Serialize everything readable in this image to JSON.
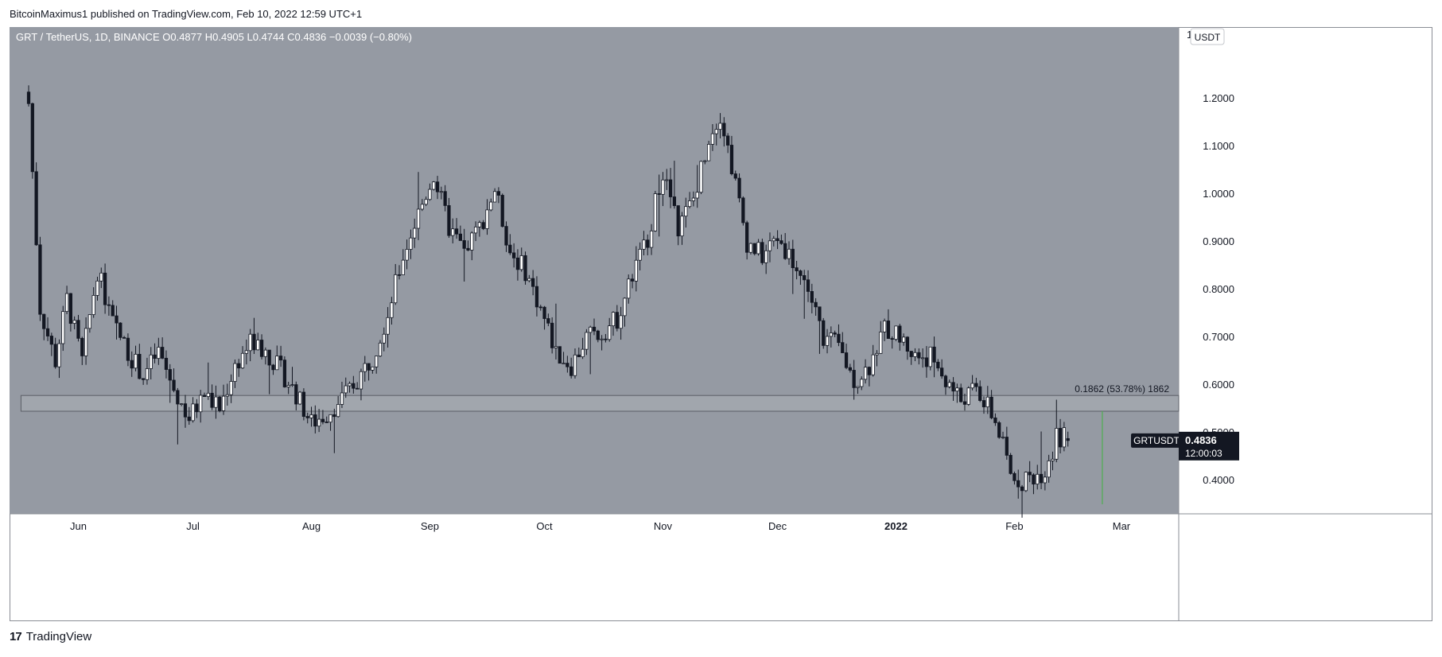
{
  "header": {
    "published_by": "BitcoinMaximus1 published on TradingView.com, Feb 10, 2022 12:59 UTC+1"
  },
  "footer": {
    "brand": "TradingView",
    "logo_glyph": "17"
  },
  "colors": {
    "background": "#959aa3",
    "up_body": "#ffffff",
    "down_body": "#131722",
    "wick": "#131722",
    "axis_text": "#131722",
    "zone_fill": "#a1a6ad",
    "zone_stroke": "#5b5f66",
    "measure_line": "#4caf50",
    "price_label_bg": "#131722"
  },
  "chart_data": {
    "type": "candlestick",
    "legend": {
      "symbol": "GRT / TetherUS, 1D, BINANCE",
      "o_label": "O",
      "o": "0.4877",
      "h_label": "H",
      "h": "0.4905",
      "l_label": "L",
      "l": "0.4744",
      "c_label": "C",
      "c": "0.4836",
      "change": "−0.0039 (−0.80%)"
    },
    "currency": "USDT",
    "ylim": [
      0.33,
      1.35
    ],
    "y_ticks": [
      {
        "value": 1.2,
        "label": "1.2000"
      },
      {
        "value": 1.1,
        "label": "1.1000"
      },
      {
        "value": 1.0,
        "label": "1.0000"
      },
      {
        "value": 0.9,
        "label": "0.9000"
      },
      {
        "value": 0.8,
        "label": "0.8000"
      },
      {
        "value": 0.7,
        "label": "0.7000"
      },
      {
        "value": 0.6,
        "label": "0.6000"
      },
      {
        "value": 0.5,
        "label": "0.5000"
      },
      {
        "value": 0.4,
        "label": "0.4000"
      }
    ],
    "y_top_partial_label": "1",
    "x_range": [
      "2021-05-14",
      "2022-03-16"
    ],
    "x_ticks": [
      {
        "date": "2021-06-01",
        "label": "Jun",
        "bold": false
      },
      {
        "date": "2021-07-01",
        "label": "Jul",
        "bold": false
      },
      {
        "date": "2021-08-01",
        "label": "Aug",
        "bold": false
      },
      {
        "date": "2021-09-01",
        "label": "Sep",
        "bold": false
      },
      {
        "date": "2021-10-01",
        "label": "Oct",
        "bold": false
      },
      {
        "date": "2021-11-01",
        "label": "Nov",
        "bold": false
      },
      {
        "date": "2021-12-01",
        "label": "Dec",
        "bold": false
      },
      {
        "date": "2022-01-01",
        "label": "2022",
        "bold": true
      },
      {
        "date": "2022-02-01",
        "label": "Feb",
        "bold": false
      },
      {
        "date": "2022-03-01",
        "label": "Mar",
        "bold": false
      }
    ],
    "candles_start": "2021-05-19",
    "close_path": [
      [
        0,
        1.19
      ],
      [
        3,
        0.76
      ],
      [
        7,
        0.65
      ],
      [
        10,
        0.78
      ],
      [
        14,
        0.65
      ],
      [
        18,
        0.84
      ],
      [
        22,
        0.73
      ],
      [
        26,
        0.67
      ],
      [
        30,
        0.62
      ],
      [
        34,
        0.67
      ],
      [
        38,
        0.59
      ],
      [
        42,
        0.53
      ],
      [
        46,
        0.58
      ],
      [
        50,
        0.55
      ],
      [
        54,
        0.64
      ],
      [
        58,
        0.69
      ],
      [
        62,
        0.67
      ],
      [
        66,
        0.63
      ],
      [
        70,
        0.58
      ],
      [
        74,
        0.52
      ],
      [
        78,
        0.54
      ],
      [
        82,
        0.57
      ],
      [
        86,
        0.61
      ],
      [
        90,
        0.66
      ],
      [
        94,
        0.75
      ],
      [
        98,
        0.87
      ],
      [
        102,
        0.96
      ],
      [
        106,
        1.04
      ],
      [
        110,
        0.93
      ],
      [
        114,
        0.88
      ],
      [
        118,
        0.93
      ],
      [
        122,
        1.01
      ],
      [
        126,
        0.88
      ],
      [
        130,
        0.84
      ],
      [
        134,
        0.76
      ],
      [
        138,
        0.67
      ],
      [
        142,
        0.64
      ],
      [
        146,
        0.7
      ],
      [
        150,
        0.71
      ],
      [
        154,
        0.74
      ],
      [
        158,
        0.83
      ],
      [
        162,
        0.91
      ],
      [
        166,
        1.05
      ],
      [
        170,
        0.93
      ],
      [
        174,
        0.99
      ],
      [
        178,
        1.12
      ],
      [
        181,
        1.17
      ],
      [
        184,
        1.06
      ],
      [
        188,
        0.9
      ],
      [
        192,
        0.87
      ],
      [
        196,
        0.91
      ],
      [
        200,
        0.86
      ],
      [
        204,
        0.8
      ],
      [
        208,
        0.7
      ],
      [
        212,
        0.68
      ],
      [
        216,
        0.61
      ],
      [
        220,
        0.64
      ],
      [
        224,
        0.72
      ],
      [
        228,
        0.7
      ],
      [
        232,
        0.66
      ],
      [
        236,
        0.66
      ],
      [
        240,
        0.61
      ],
      [
        244,
        0.57
      ],
      [
        248,
        0.59
      ],
      [
        252,
        0.54
      ],
      [
        254,
        0.5
      ],
      [
        257,
        0.41
      ],
      [
        260,
        0.4
      ],
      [
        263,
        0.41
      ],
      [
        266,
        0.42
      ],
      [
        269,
        0.49
      ],
      [
        271,
        0.49
      ],
      [
        272,
        0.4836
      ]
    ],
    "zone": {
      "low": 0.545,
      "high": 0.578,
      "start": "2021-05-17",
      "end": "2022-03-16"
    },
    "zone_label": "0.1862 (53.78%) 1862",
    "measure_line": {
      "date": "2022-02-24",
      "from": 0.35,
      "to": 0.545
    },
    "last_price": {
      "symbol": "GRTUSDT",
      "value": 0.4836,
      "label": "0.4836",
      "countdown": "12:00:03"
    }
  }
}
